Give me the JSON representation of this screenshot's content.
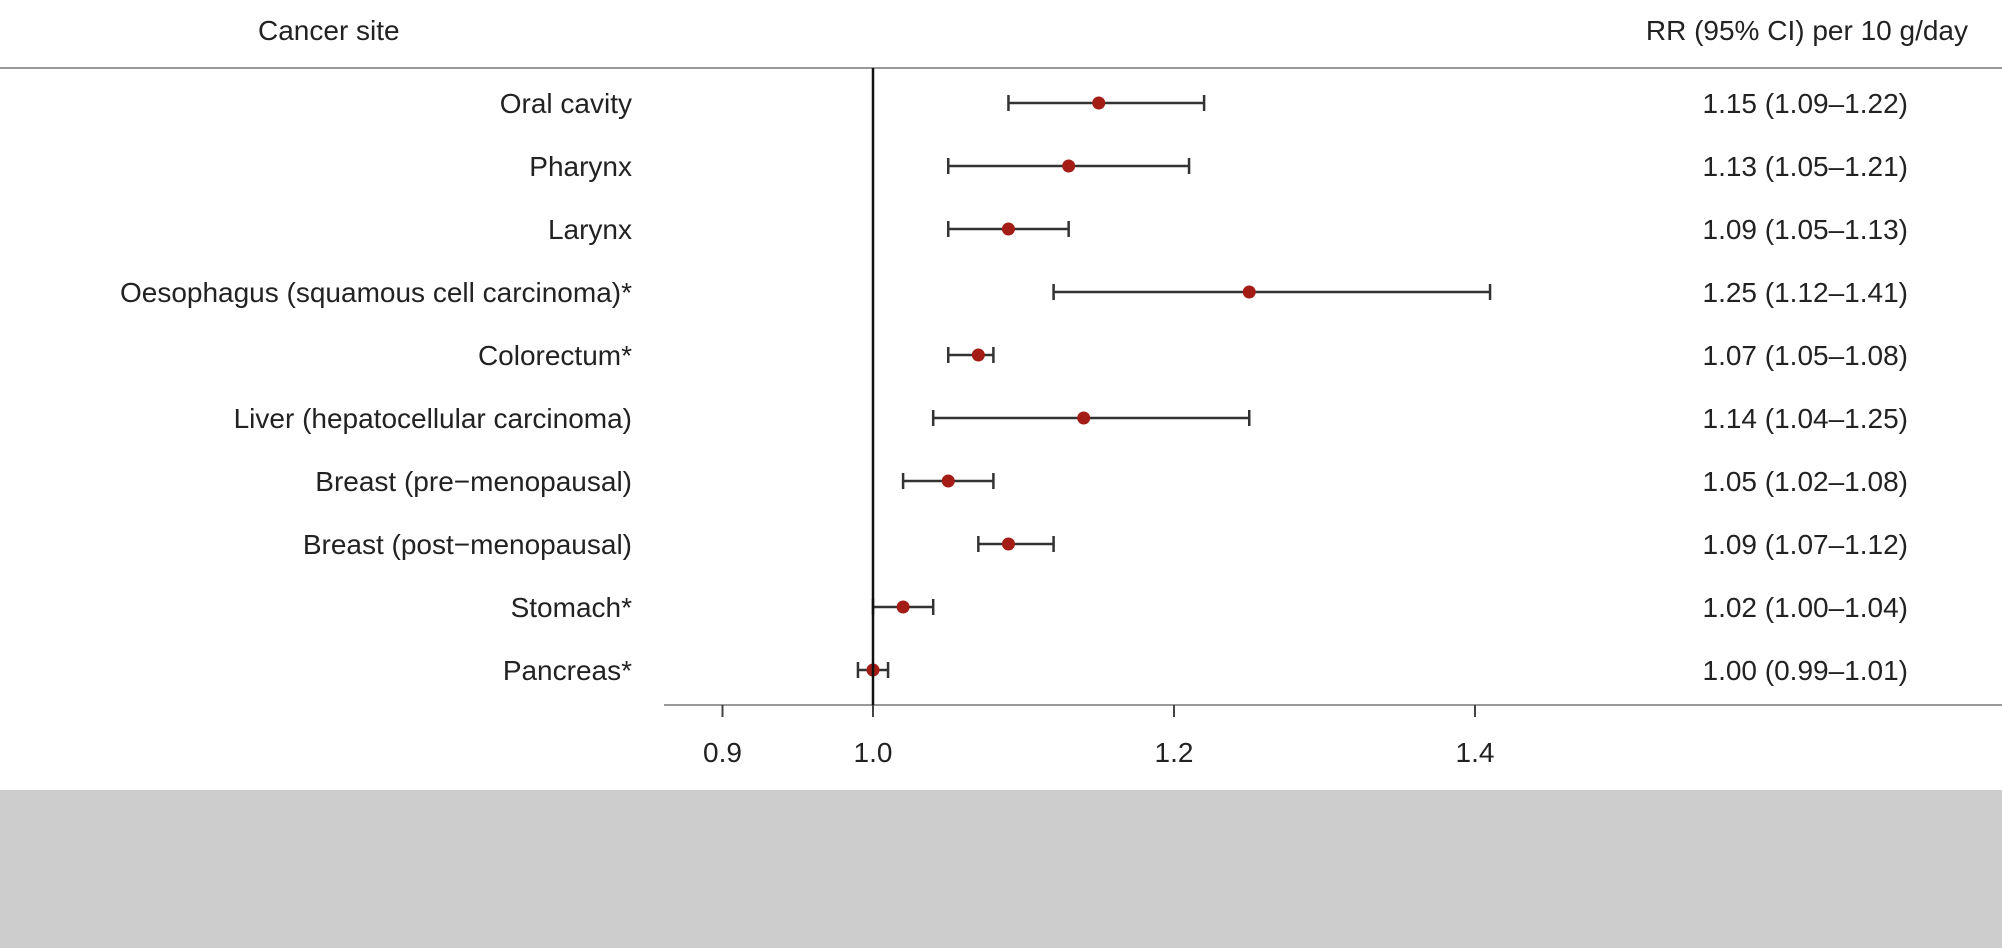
{
  "header": {
    "left": "Cancer site",
    "right": "RR (95% CI) per 10 g/day"
  },
  "colors": {
    "point": "#a31c16",
    "line": "#333333",
    "rule": "#999999",
    "band": "#cdcdcd"
  },
  "chart_data": {
    "type": "forest",
    "reference_value": 1.0,
    "xlim": [
      0.8,
      1.65
    ],
    "xticks": [
      0.9,
      1.0,
      1.2,
      1.4
    ],
    "xtick_labels": [
      "0.9",
      "1.0",
      "1.2",
      "1.4"
    ],
    "rows": [
      {
        "label": "Oral cavity",
        "rr": 1.15,
        "lo": 1.09,
        "hi": 1.22,
        "ci_text": "1.15 (1.09–1.22)"
      },
      {
        "label": "Pharynx",
        "rr": 1.13,
        "lo": 1.05,
        "hi": 1.21,
        "ci_text": "1.13 (1.05–1.21)"
      },
      {
        "label": "Larynx",
        "rr": 1.09,
        "lo": 1.05,
        "hi": 1.13,
        "ci_text": "1.09 (1.05–1.13)"
      },
      {
        "label": "Oesophagus (squamous cell carcinoma)*",
        "rr": 1.25,
        "lo": 1.12,
        "hi": 1.41,
        "ci_text": "1.25 (1.12–1.41)"
      },
      {
        "label": "Colorectum*",
        "rr": 1.07,
        "lo": 1.05,
        "hi": 1.08,
        "ci_text": "1.07 (1.05–1.08)"
      },
      {
        "label": "Liver (hepatocellular carcinoma)",
        "rr": 1.14,
        "lo": 1.04,
        "hi": 1.25,
        "ci_text": "1.14 (1.04–1.25)"
      },
      {
        "label": "Breast (pre−menopausal)",
        "rr": 1.05,
        "lo": 1.02,
        "hi": 1.08,
        "ci_text": "1.05 (1.02–1.08)"
      },
      {
        "label": "Breast (post−menopausal)",
        "rr": 1.09,
        "lo": 1.07,
        "hi": 1.12,
        "ci_text": "1.09 (1.07–1.12)"
      },
      {
        "label": "Stomach*",
        "rr": 1.02,
        "lo": 1.0,
        "hi": 1.04,
        "ci_text": "1.02 (1.00–1.04)"
      },
      {
        "label": "Pancreas*",
        "rr": 1.0,
        "lo": 0.99,
        "hi": 1.01,
        "ci_text": "1.00 (0.99–1.01)"
      }
    ]
  }
}
